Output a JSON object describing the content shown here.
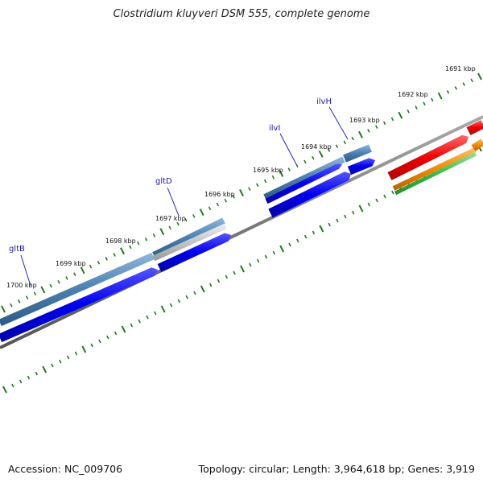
{
  "title": "Clostridium kluyveri DSM 555, complete genome",
  "footer": {
    "accession": "Accession: NC_009706",
    "info": "Topology: circular; Length: 3,964,618 bp; Genes: 3,919"
  },
  "colors": {
    "ticks": "#1f7a1f",
    "backbone": "#777777",
    "gene_blue": "#0000ee",
    "feature_steel": "#4a7fb0",
    "feature_red": "#ee0000",
    "feature_orange": "#f08a00",
    "feature_green": "#3cb84a",
    "label_line": "#2222cc"
  },
  "tick_labels": [
    {
      "text": "1691 kbp"
    },
    {
      "text": "1692 kbp"
    },
    {
      "text": "1693 kbp"
    },
    {
      "text": "1694 kbp"
    },
    {
      "text": "1695 kbp"
    },
    {
      "text": "1696 kbp"
    },
    {
      "text": "1697 kbp"
    },
    {
      "text": "1698 kbp"
    },
    {
      "text": "1699 kbp"
    },
    {
      "text": "1700 kbp"
    }
  ],
  "gene_labels": [
    {
      "name": "gltB"
    },
    {
      "name": "gltD"
    },
    {
      "name": "ilvI"
    },
    {
      "name": "ilvH"
    }
  ]
}
